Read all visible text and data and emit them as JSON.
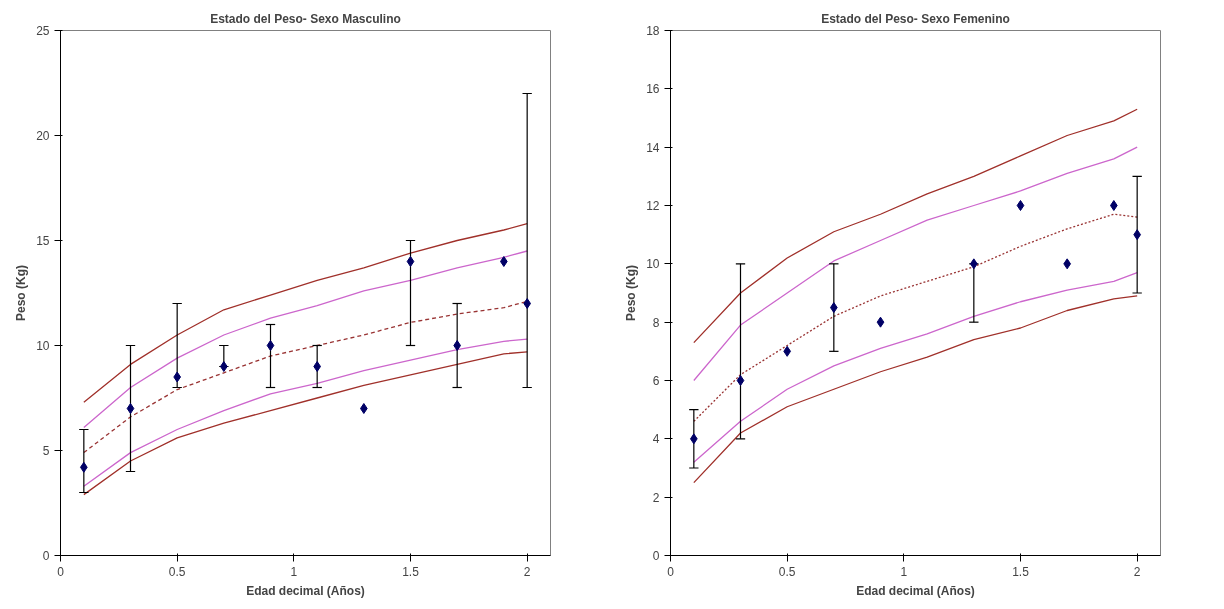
{
  "chart_data": [
    {
      "type": "scatter",
      "title": "Estado del Peso- Sexo Masculino",
      "xlabel": "Edad decimal (Años)",
      "ylabel": "Peso (Kg)",
      "xlim": [
        0,
        2.1
      ],
      "ylim": [
        0,
        25
      ],
      "xticks": [
        0,
        0.5,
        1,
        1.5,
        2
      ],
      "yticks": [
        0,
        5,
        10,
        15,
        20,
        25
      ],
      "grid": false,
      "series": [
        {
          "type": "line",
          "color": "#a0302a",
          "line_style": "solid",
          "marker": "none",
          "x": [
            0.1,
            0.3,
            0.5,
            0.7,
            0.9,
            1.1,
            1.3,
            1.5,
            1.7,
            1.9,
            2.0
          ],
          "values": [
            7.3,
            9.1,
            10.5,
            11.7,
            12.4,
            13.1,
            13.7,
            14.4,
            15.0,
            15.5,
            15.8
          ]
        },
        {
          "type": "line",
          "color": "#cc66cc",
          "line_style": "solid",
          "marker": "none",
          "x": [
            0.1,
            0.3,
            0.5,
            0.7,
            0.9,
            1.1,
            1.3,
            1.5,
            1.7,
            1.9,
            2.0
          ],
          "values": [
            6.1,
            8.0,
            9.4,
            10.5,
            11.3,
            11.9,
            12.6,
            13.1,
            13.7,
            14.2,
            14.5
          ]
        },
        {
          "type": "line",
          "color": "#993333",
          "line_style": "dashed",
          "marker": "none",
          "x": [
            0.1,
            0.3,
            0.5,
            0.7,
            0.9,
            1.1,
            1.3,
            1.5,
            1.7,
            1.9,
            2.0
          ],
          "values": [
            4.9,
            6.6,
            7.9,
            8.7,
            9.5,
            10.0,
            10.5,
            11.1,
            11.5,
            11.8,
            12.1
          ]
        },
        {
          "type": "line",
          "color": "#cc66cc",
          "line_style": "solid",
          "marker": "none",
          "x": [
            0.1,
            0.3,
            0.5,
            0.7,
            0.9,
            1.1,
            1.3,
            1.5,
            1.7,
            1.9,
            2.0
          ],
          "values": [
            3.3,
            4.9,
            6.0,
            6.9,
            7.7,
            8.2,
            8.8,
            9.3,
            9.8,
            10.2,
            10.3
          ]
        },
        {
          "type": "line",
          "color": "#a0302a",
          "line_style": "solid",
          "marker": "none",
          "x": [
            0.1,
            0.3,
            0.5,
            0.7,
            0.9,
            1.1,
            1.3,
            1.5,
            1.7,
            1.9,
            2.0
          ],
          "values": [
            2.9,
            4.5,
            5.6,
            6.3,
            6.9,
            7.5,
            8.1,
            8.6,
            9.1,
            9.6,
            9.7
          ]
        },
        {
          "color": "#000066",
          "marker": "diamond",
          "x": [
            0.1,
            0.3,
            0.5,
            0.7,
            0.9,
            1.1,
            1.3,
            1.5,
            1.7,
            1.9,
            2.0
          ],
          "values": [
            4.2,
            7,
            8.5,
            9,
            10,
            9,
            7,
            14,
            10,
            14,
            12
          ],
          "errors": [
            [
              3,
              6
            ],
            [
              4,
              10
            ],
            [
              8,
              12
            ],
            [
              9,
              10
            ],
            [
              8,
              11
            ],
            [
              8,
              10
            ],
            null,
            [
              10,
              15
            ],
            [
              8,
              12
            ],
            null,
            [
              8,
              22
            ]
          ]
        }
      ]
    },
    {
      "type": "scatter",
      "title": "Estado del Peso- Sexo Femenino",
      "xlabel": "Edad decimal (Años)",
      "ylabel": "Peso (Kg)",
      "xlim": [
        0,
        2.1
      ],
      "ylim": [
        0,
        18
      ],
      "xticks": [
        0,
        0.5,
        1,
        1.5,
        2
      ],
      "yticks": [
        0,
        2,
        4,
        6,
        8,
        10,
        12,
        14,
        16,
        18
      ],
      "grid": false,
      "series": [
        {
          "type": "line",
          "color": "#a0302a",
          "line_style": "solid",
          "marker": "none",
          "x": [
            0.1,
            0.3,
            0.5,
            0.7,
            0.9,
            1.1,
            1.3,
            1.5,
            1.7,
            1.9,
            2.0
          ],
          "values": [
            7.3,
            9.0,
            10.2,
            11.1,
            11.7,
            12.4,
            13.0,
            13.7,
            14.4,
            14.9,
            15.3
          ]
        },
        {
          "type": "line",
          "color": "#cc66cc",
          "line_style": "solid",
          "marker": "none",
          "x": [
            0.1,
            0.3,
            0.5,
            0.7,
            0.9,
            1.1,
            1.3,
            1.5,
            1.7,
            1.9,
            2.0
          ],
          "values": [
            6.0,
            7.9,
            9.0,
            10.1,
            10.8,
            11.5,
            12.0,
            12.5,
            13.1,
            13.6,
            14.0
          ]
        },
        {
          "type": "line",
          "color": "#993333",
          "line_style": "dotted",
          "marker": "none",
          "x": [
            0.1,
            0.3,
            0.5,
            0.7,
            0.9,
            1.1,
            1.3,
            1.5,
            1.7,
            1.9,
            2.0
          ],
          "values": [
            4.6,
            6.2,
            7.2,
            8.2,
            8.9,
            9.4,
            9.9,
            10.6,
            11.2,
            11.7,
            11.6
          ]
        },
        {
          "type": "line",
          "color": "#cc66cc",
          "line_style": "solid",
          "marker": "none",
          "x": [
            0.1,
            0.3,
            0.5,
            0.7,
            0.9,
            1.1,
            1.3,
            1.5,
            1.7,
            1.9,
            2.0
          ],
          "values": [
            3.2,
            4.6,
            5.7,
            6.5,
            7.1,
            7.6,
            8.2,
            8.7,
            9.1,
            9.4,
            9.7
          ]
        },
        {
          "type": "line",
          "color": "#a0302a",
          "line_style": "solid",
          "marker": "none",
          "x": [
            0.1,
            0.3,
            0.5,
            0.7,
            0.9,
            1.1,
            1.3,
            1.5,
            1.7,
            1.9,
            2.0
          ],
          "values": [
            2.5,
            4.2,
            5.1,
            5.7,
            6.3,
            6.8,
            7.4,
            7.8,
            8.4,
            8.8,
            8.9
          ]
        },
        {
          "color": "#000066",
          "marker": "diamond",
          "x": [
            0.1,
            0.3,
            0.5,
            0.7,
            0.9,
            1.3,
            1.5,
            1.7,
            1.9,
            2.0
          ],
          "values": [
            4,
            6,
            7,
            8.5,
            8,
            10,
            12,
            10,
            12,
            11
          ],
          "errors": [
            [
              3,
              5
            ],
            [
              4,
              10
            ],
            null,
            [
              7,
              10
            ],
            null,
            [
              8,
              10
            ],
            null,
            null,
            null,
            [
              9,
              13
            ]
          ]
        }
      ]
    }
  ]
}
